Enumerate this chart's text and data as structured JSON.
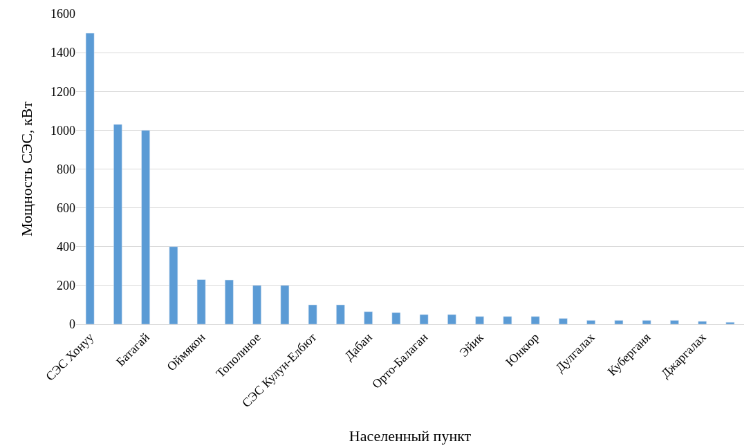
{
  "chart_data": {
    "type": "bar",
    "xlabel": "Населенный пункт",
    "ylabel": "Мощность СЭС, кВт",
    "categories": [
      "СЭС Хонуу",
      null,
      "Батагай",
      null,
      "Оймякон",
      null,
      "Тополиное",
      null,
      "СЭС Кулун-Елбют",
      null,
      "Дабан",
      null,
      "Орто-Балаган",
      null,
      "Эйик",
      null,
      "Юнкюр",
      null,
      "Дулгалах",
      null,
      "Куберганя",
      null,
      "Джаргалах",
      null
    ],
    "values": [
      1500,
      1030,
      1000,
      400,
      230,
      228,
      200,
      200,
      100,
      100,
      65,
      60,
      50,
      50,
      40,
      40,
      40,
      30,
      20,
      20,
      20,
      20,
      15,
      10
    ],
    "color": "#5b9bd5",
    "ylim": [
      0,
      1600
    ],
    "yticks": [
      0,
      200,
      400,
      600,
      800,
      1000,
      1200,
      1400,
      1600
    ],
    "grid": "y"
  }
}
